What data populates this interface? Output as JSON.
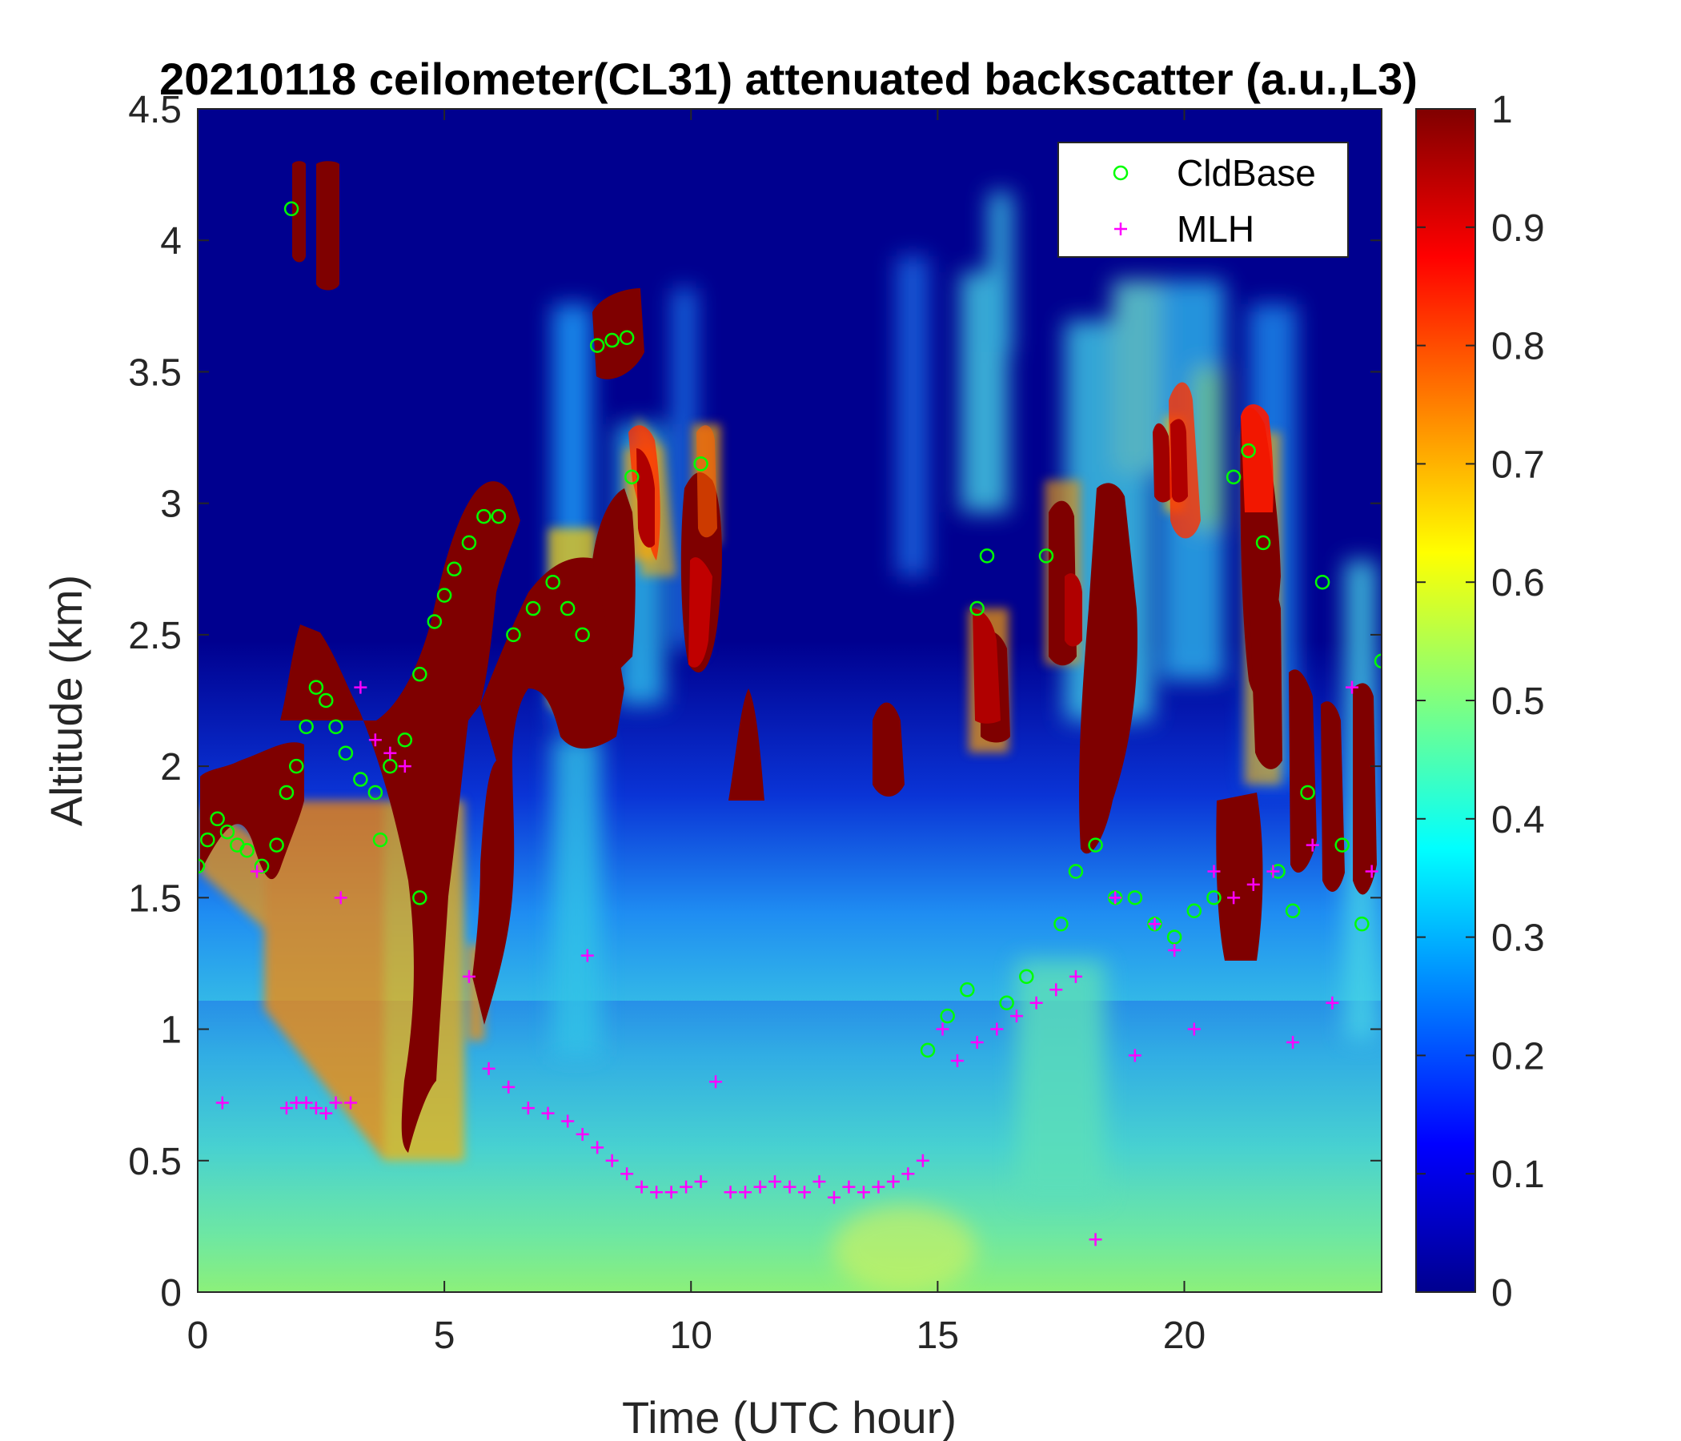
{
  "chart_data": {
    "type": "heatmap",
    "title": "20210118 ceilometer(CL31) attenuated backscatter (a.u.,L3)",
    "xlabel": "Time (UTC hour)",
    "ylabel": "Altitude (km)",
    "xlim": [
      0,
      24
    ],
    "ylim": [
      0,
      4.5
    ],
    "xticks": [
      0,
      5,
      10,
      15,
      20
    ],
    "yticks": [
      0,
      0.5,
      1,
      1.5,
      2,
      2.5,
      3,
      3.5,
      4,
      4.5
    ],
    "colorbar": {
      "colormap": "jet",
      "range": [
        0,
        1
      ],
      "ticks": [
        0,
        0.1,
        0.2,
        0.3,
        0.4,
        0.5,
        0.6,
        0.7,
        0.8,
        0.9,
        1
      ]
    },
    "legend": {
      "placement": "top-right"
    },
    "series": [
      {
        "name": "CldBase",
        "marker": "circle",
        "color": "#00ff00",
        "x": [
          0.0,
          0.2,
          0.4,
          0.6,
          0.8,
          1.0,
          1.3,
          1.6,
          1.8,
          2.0,
          2.2,
          2.4,
          2.6,
          2.8,
          3.0,
          3.3,
          3.6,
          3.9,
          4.2,
          4.5,
          4.8,
          5.0,
          5.2,
          5.5,
          5.8,
          6.1,
          6.4,
          6.8,
          7.2,
          7.5,
          7.8,
          8.1,
          8.4,
          8.7,
          8.8,
          10.2,
          14.8,
          15.2,
          15.6,
          15.8,
          16.0,
          16.4,
          16.8,
          17.2,
          17.5,
          17.8,
          18.2,
          18.6,
          19.0,
          19.4,
          19.8,
          20.2,
          20.6,
          21.0,
          21.3,
          21.6,
          21.9,
          22.2,
          22.5,
          22.8,
          23.2,
          23.6,
          24.0,
          1.9,
          4.5,
          3.7
        ],
        "y": [
          1.62,
          1.72,
          1.8,
          1.75,
          1.7,
          1.68,
          1.62,
          1.7,
          1.9,
          2.0,
          2.15,
          2.3,
          2.25,
          2.15,
          2.05,
          1.95,
          1.9,
          2.0,
          2.1,
          2.35,
          2.55,
          2.65,
          2.75,
          2.85,
          2.95,
          2.95,
          2.5,
          2.6,
          2.7,
          2.6,
          2.5,
          3.6,
          3.62,
          3.63,
          3.1,
          3.15,
          0.92,
          1.05,
          1.15,
          2.6,
          2.8,
          1.1,
          1.2,
          2.8,
          1.4,
          1.6,
          1.7,
          1.5,
          1.5,
          1.4,
          1.35,
          1.45,
          1.5,
          3.1,
          3.2,
          2.85,
          1.6,
          1.45,
          1.9,
          2.7,
          1.7,
          1.4,
          2.4,
          4.12,
          1.5,
          1.72
        ]
      },
      {
        "name": "MLH",
        "marker": "plus",
        "color": "#ff00ff",
        "x": [
          0.5,
          1.2,
          1.8,
          2.0,
          2.2,
          2.4,
          2.6,
          2.8,
          3.1,
          3.3,
          3.6,
          3.9,
          4.2,
          5.5,
          5.9,
          6.3,
          6.7,
          7.1,
          7.5,
          7.8,
          8.1,
          8.4,
          8.7,
          9.0,
          9.3,
          9.6,
          9.9,
          10.2,
          10.5,
          10.8,
          11.1,
          11.4,
          11.7,
          12.0,
          12.3,
          12.6,
          12.9,
          13.2,
          13.5,
          13.8,
          14.1,
          14.4,
          14.7,
          15.1,
          15.4,
          15.8,
          16.2,
          16.6,
          17.0,
          17.4,
          17.8,
          18.2,
          18.6,
          19.0,
          19.4,
          19.8,
          20.2,
          20.6,
          21.0,
          21.4,
          21.8,
          22.2,
          22.6,
          23.0,
          23.4,
          23.8,
          2.9,
          7.9
        ],
        "y": [
          0.72,
          1.6,
          0.7,
          0.72,
          0.72,
          0.7,
          0.68,
          0.72,
          0.72,
          2.3,
          2.1,
          2.05,
          2.0,
          1.2,
          0.85,
          0.78,
          0.7,
          0.68,
          0.65,
          0.6,
          0.55,
          0.5,
          0.45,
          0.4,
          0.38,
          0.38,
          0.4,
          0.42,
          0.8,
          0.38,
          0.38,
          0.4,
          0.42,
          0.4,
          0.38,
          0.42,
          0.36,
          0.4,
          0.38,
          0.4,
          0.42,
          0.45,
          0.5,
          1.0,
          0.88,
          0.95,
          1.0,
          1.05,
          1.1,
          1.15,
          1.2,
          0.2,
          1.5,
          0.9,
          1.4,
          1.3,
          1.0,
          1.6,
          1.5,
          1.55,
          1.6,
          0.95,
          1.7,
          1.1,
          2.3,
          1.6,
          1.5,
          1.28
        ]
      }
    ]
  }
}
